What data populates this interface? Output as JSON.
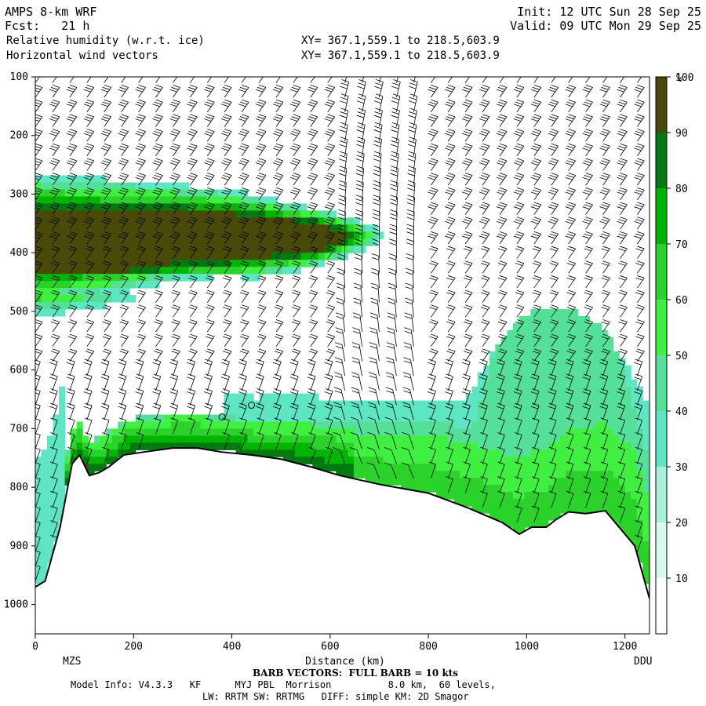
{
  "header": {
    "model": "AMPS 8-km WRF",
    "fcst": "Fcst:   21 h",
    "init": "Init: 12 UTC Sun 28 Sep 25",
    "valid": "Valid: 09 UTC Mon 29 Sep 25",
    "field1": "Relative humidity (w.r.t. ice)",
    "field2": "Horizontal wind vectors",
    "xy1": "XY= 367.1,559.1 to 218.5,603.9",
    "xy2": "XY= 367.1,559.1 to 218.5,603.9"
  },
  "footer": {
    "barb": "BARB VECTORS:  FULL BARB = 10 kts",
    "model_info": "Model Info: V4.3.3   KF      MYJ PBL  Morrison          8.0 km,  60 levels,",
    "physics": "LW: RRTM SW: RRTMG   DIFF: simple KM: 2D Smagor"
  },
  "chart_data": {
    "type": "heatmap",
    "title": "Relative humidity (w.r.t. ice)",
    "xlabel": "Distance (km)",
    "ylabel": "",
    "x_ticks": [
      "0",
      "200",
      "400",
      "600",
      "800",
      "1000",
      "1200"
    ],
    "y_ticks": [
      "100",
      "200",
      "300",
      "400",
      "500",
      "600",
      "700",
      "800",
      "900",
      "1000"
    ],
    "xlim": [
      0,
      1250
    ],
    "ylim": [
      1050,
      100
    ],
    "x_end_labels": {
      "left": "MZS",
      "right": "DDU"
    },
    "colorbar": {
      "unit": "%",
      "levels": [
        "10",
        "20",
        "30",
        "40",
        "50",
        "60",
        "70",
        "80",
        "90",
        "100"
      ],
      "colors": [
        "#ffffff",
        "#d8faec",
        "#a8f0da",
        "#5ee6c4",
        "#55e09a",
        "#40f040",
        "#2ad22a",
        "#00b400",
        "#007a10",
        "#4a4a08"
      ]
    },
    "terrain_pressure": [
      [
        0,
        970
      ],
      [
        20,
        960
      ],
      [
        50,
        870
      ],
      [
        75,
        760
      ],
      [
        90,
        745
      ],
      [
        110,
        780
      ],
      [
        130,
        775
      ],
      [
        150,
        765
      ],
      [
        180,
        745
      ],
      [
        220,
        740
      ],
      [
        280,
        733
      ],
      [
        330,
        733
      ],
      [
        380,
        740
      ],
      [
        440,
        745
      ],
      [
        500,
        752
      ],
      [
        560,
        765
      ],
      [
        620,
        780
      ],
      [
        700,
        795
      ],
      [
        800,
        810
      ],
      [
        880,
        835
      ],
      [
        950,
        860
      ],
      [
        985,
        880
      ],
      [
        1010,
        868
      ],
      [
        1040,
        868
      ],
      [
        1060,
        855
      ],
      [
        1085,
        842
      ],
      [
        1120,
        845
      ],
      [
        1160,
        840
      ],
      [
        1190,
        870
      ],
      [
        1220,
        900
      ],
      [
        1250,
        990
      ]
    ],
    "moist_bands": [
      {
        "name": "upper",
        "x": [
          0,
          700
        ],
        "p_top": [
          255,
          265,
          275,
          290,
          320,
          340
        ],
        "p_bot": [
          520,
          500,
          470,
          455,
          430,
          400
        ],
        "rh": 90
      },
      {
        "name": "low",
        "x": [
          60,
          1250
        ],
        "p_top": 650,
        "rh": 50
      },
      {
        "name": "dome",
        "x": [
          820,
          1250
        ],
        "p_top": 490,
        "rh": 40
      }
    ]
  }
}
